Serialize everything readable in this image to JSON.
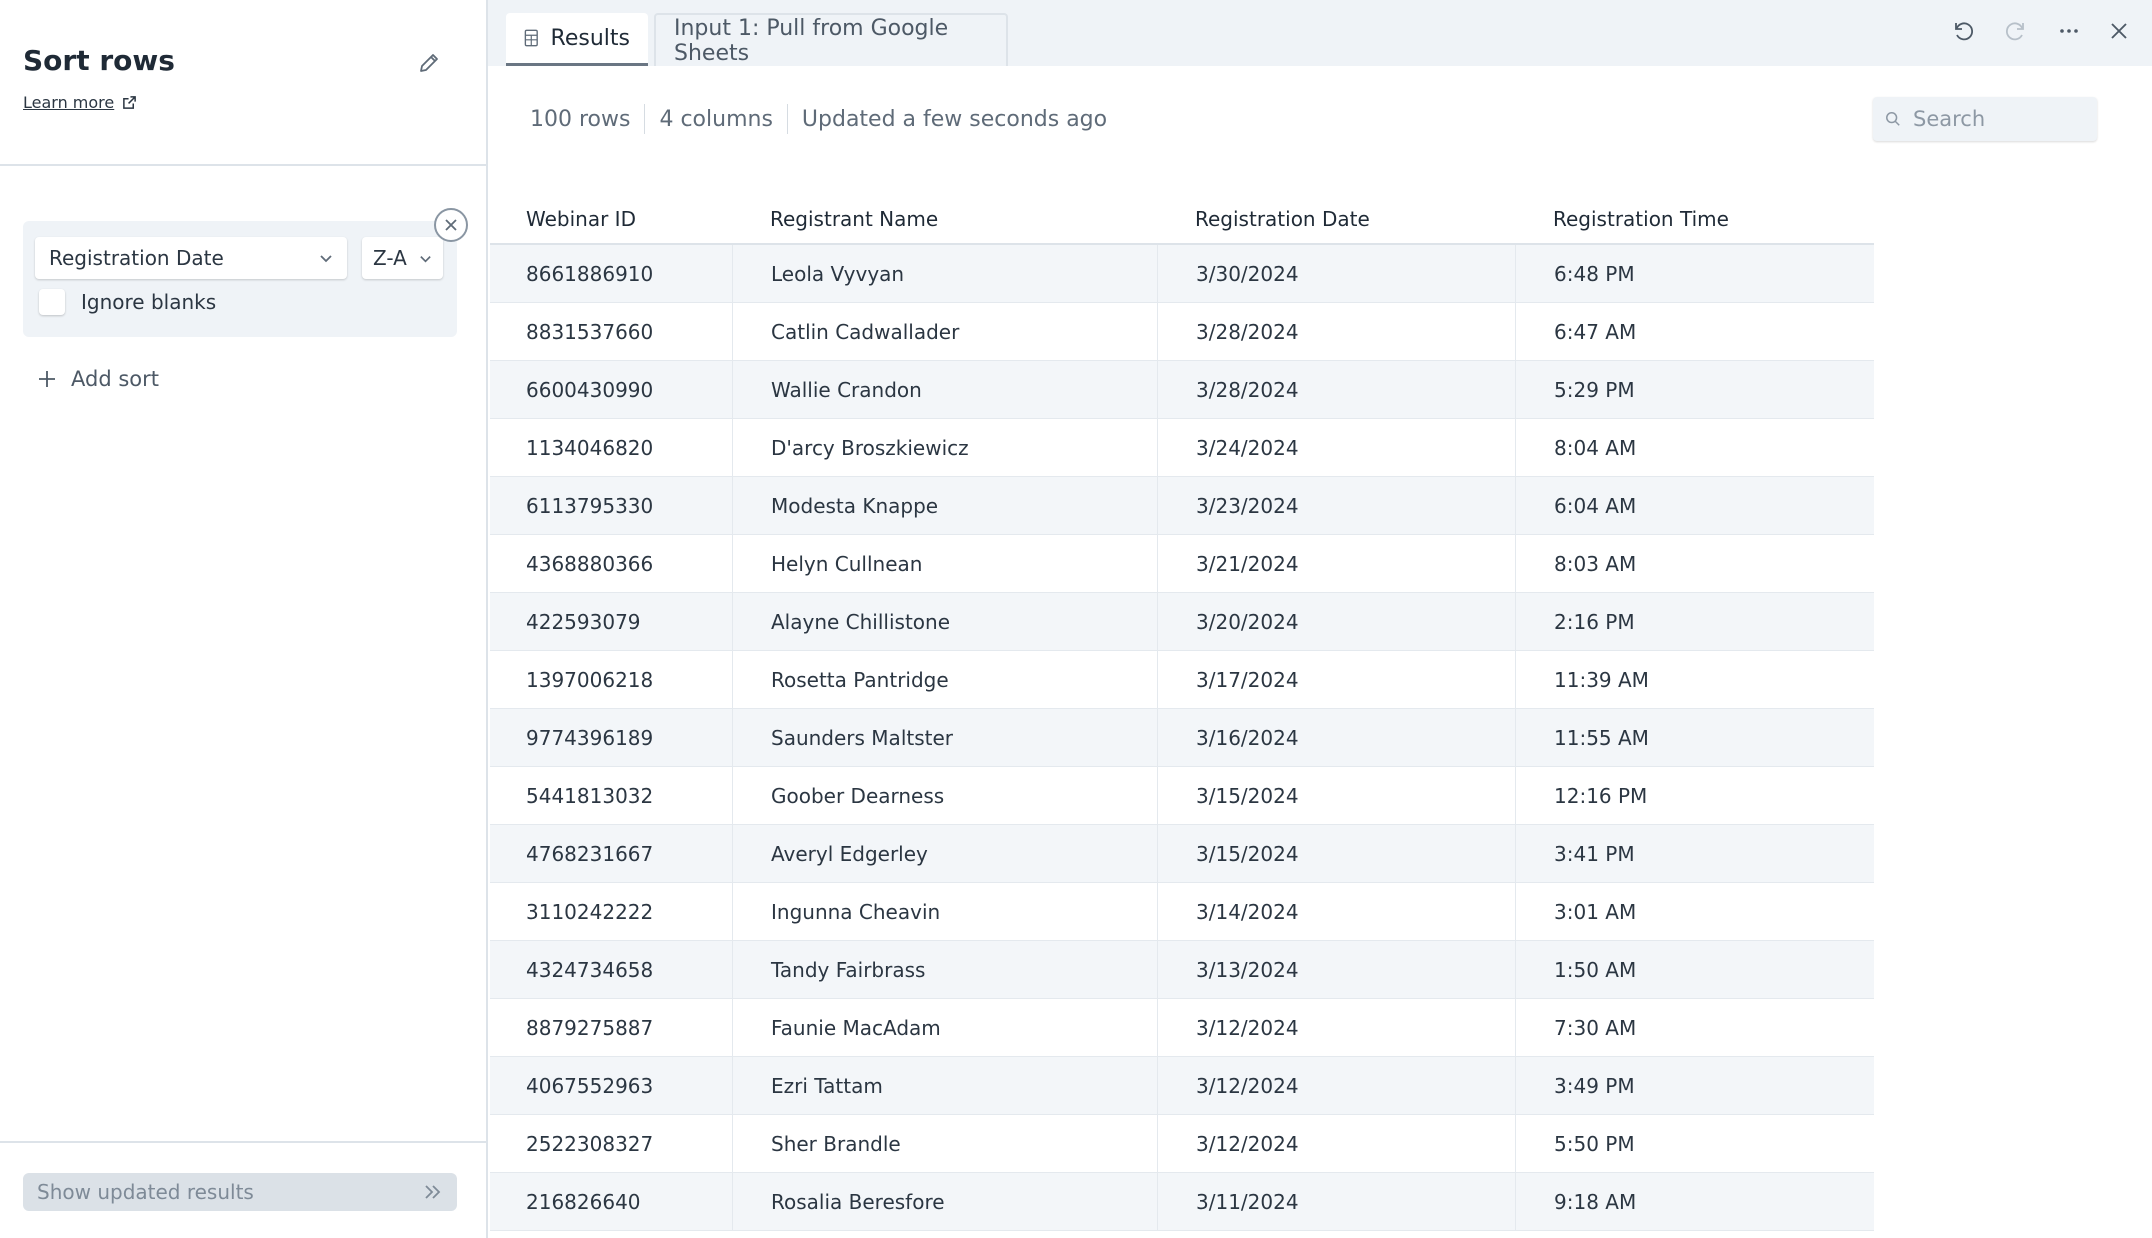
{
  "panel": {
    "title": "Sort rows",
    "learn_more": "Learn more",
    "sort": {
      "column": "Registration Date",
      "direction": "Z-A",
      "ignore_blanks_label": "Ignore blanks"
    },
    "add_sort": "Add sort",
    "show_results": "Show updated results"
  },
  "tabs": {
    "results": "Results",
    "input": "Input 1: Pull from Google Sheets"
  },
  "summary": {
    "rows": "100 rows",
    "columns": "4 columns",
    "updated": "Updated a few seconds ago"
  },
  "search": {
    "placeholder": "Search"
  },
  "table": {
    "headers": [
      "Webinar ID",
      "Registrant Name",
      "Registration Date",
      "Registration Time"
    ],
    "rows": [
      [
        "8661886910",
        "Leola Vyvyan",
        "3/30/2024",
        "6:48 PM"
      ],
      [
        "8831537660",
        "Catlin Cadwallader",
        "3/28/2024",
        "6:47 AM"
      ],
      [
        "6600430990",
        "Wallie Crandon",
        "3/28/2024",
        "5:29 PM"
      ],
      [
        "1134046820",
        "D'arcy Broszkiewicz",
        "3/24/2024",
        "8:04 AM"
      ],
      [
        "6113795330",
        "Modesta Knappe",
        "3/23/2024",
        "6:04 AM"
      ],
      [
        "4368880366",
        "Helyn Cullnean",
        "3/21/2024",
        "8:03 AM"
      ],
      [
        "422593079",
        "Alayne Chillistone",
        "3/20/2024",
        "2:16 PM"
      ],
      [
        "1397006218",
        "Rosetta Pantridge",
        "3/17/2024",
        "11:39 AM"
      ],
      [
        "9774396189",
        "Saunders Maltster",
        "3/16/2024",
        "11:55 AM"
      ],
      [
        "5441813032",
        "Goober Dearness",
        "3/15/2024",
        "12:16 PM"
      ],
      [
        "4768231667",
        "Averyl Edgerley",
        "3/15/2024",
        "3:41 PM"
      ],
      [
        "3110242222",
        "Ingunna Cheavin",
        "3/14/2024",
        "3:01 AM"
      ],
      [
        "4324734658",
        "Tandy Fairbrass",
        "3/13/2024",
        "1:50 AM"
      ],
      [
        "8879275887",
        "Faunie MacAdam",
        "3/12/2024",
        "7:30 AM"
      ],
      [
        "4067552963",
        "Ezri Tattam",
        "3/12/2024",
        "3:49 PM"
      ],
      [
        "2522308327",
        "Sher Brandle",
        "3/12/2024",
        "5:50 PM"
      ],
      [
        "216826640",
        "Rosalia Beresfore",
        "3/11/2024",
        "9:18 AM"
      ]
    ]
  },
  "colors": {
    "panel_bg": "#eff3f7",
    "border": "#dde3e9",
    "text": "#2b3642",
    "muted": "#5f6b78"
  },
  "icons": [
    "pencil-icon",
    "external-link-icon",
    "chevron-down-icon",
    "close-icon",
    "plus-icon",
    "double-chevron-right-icon",
    "table-icon",
    "undo-icon",
    "redo-icon",
    "more-icon",
    "search-icon"
  ]
}
